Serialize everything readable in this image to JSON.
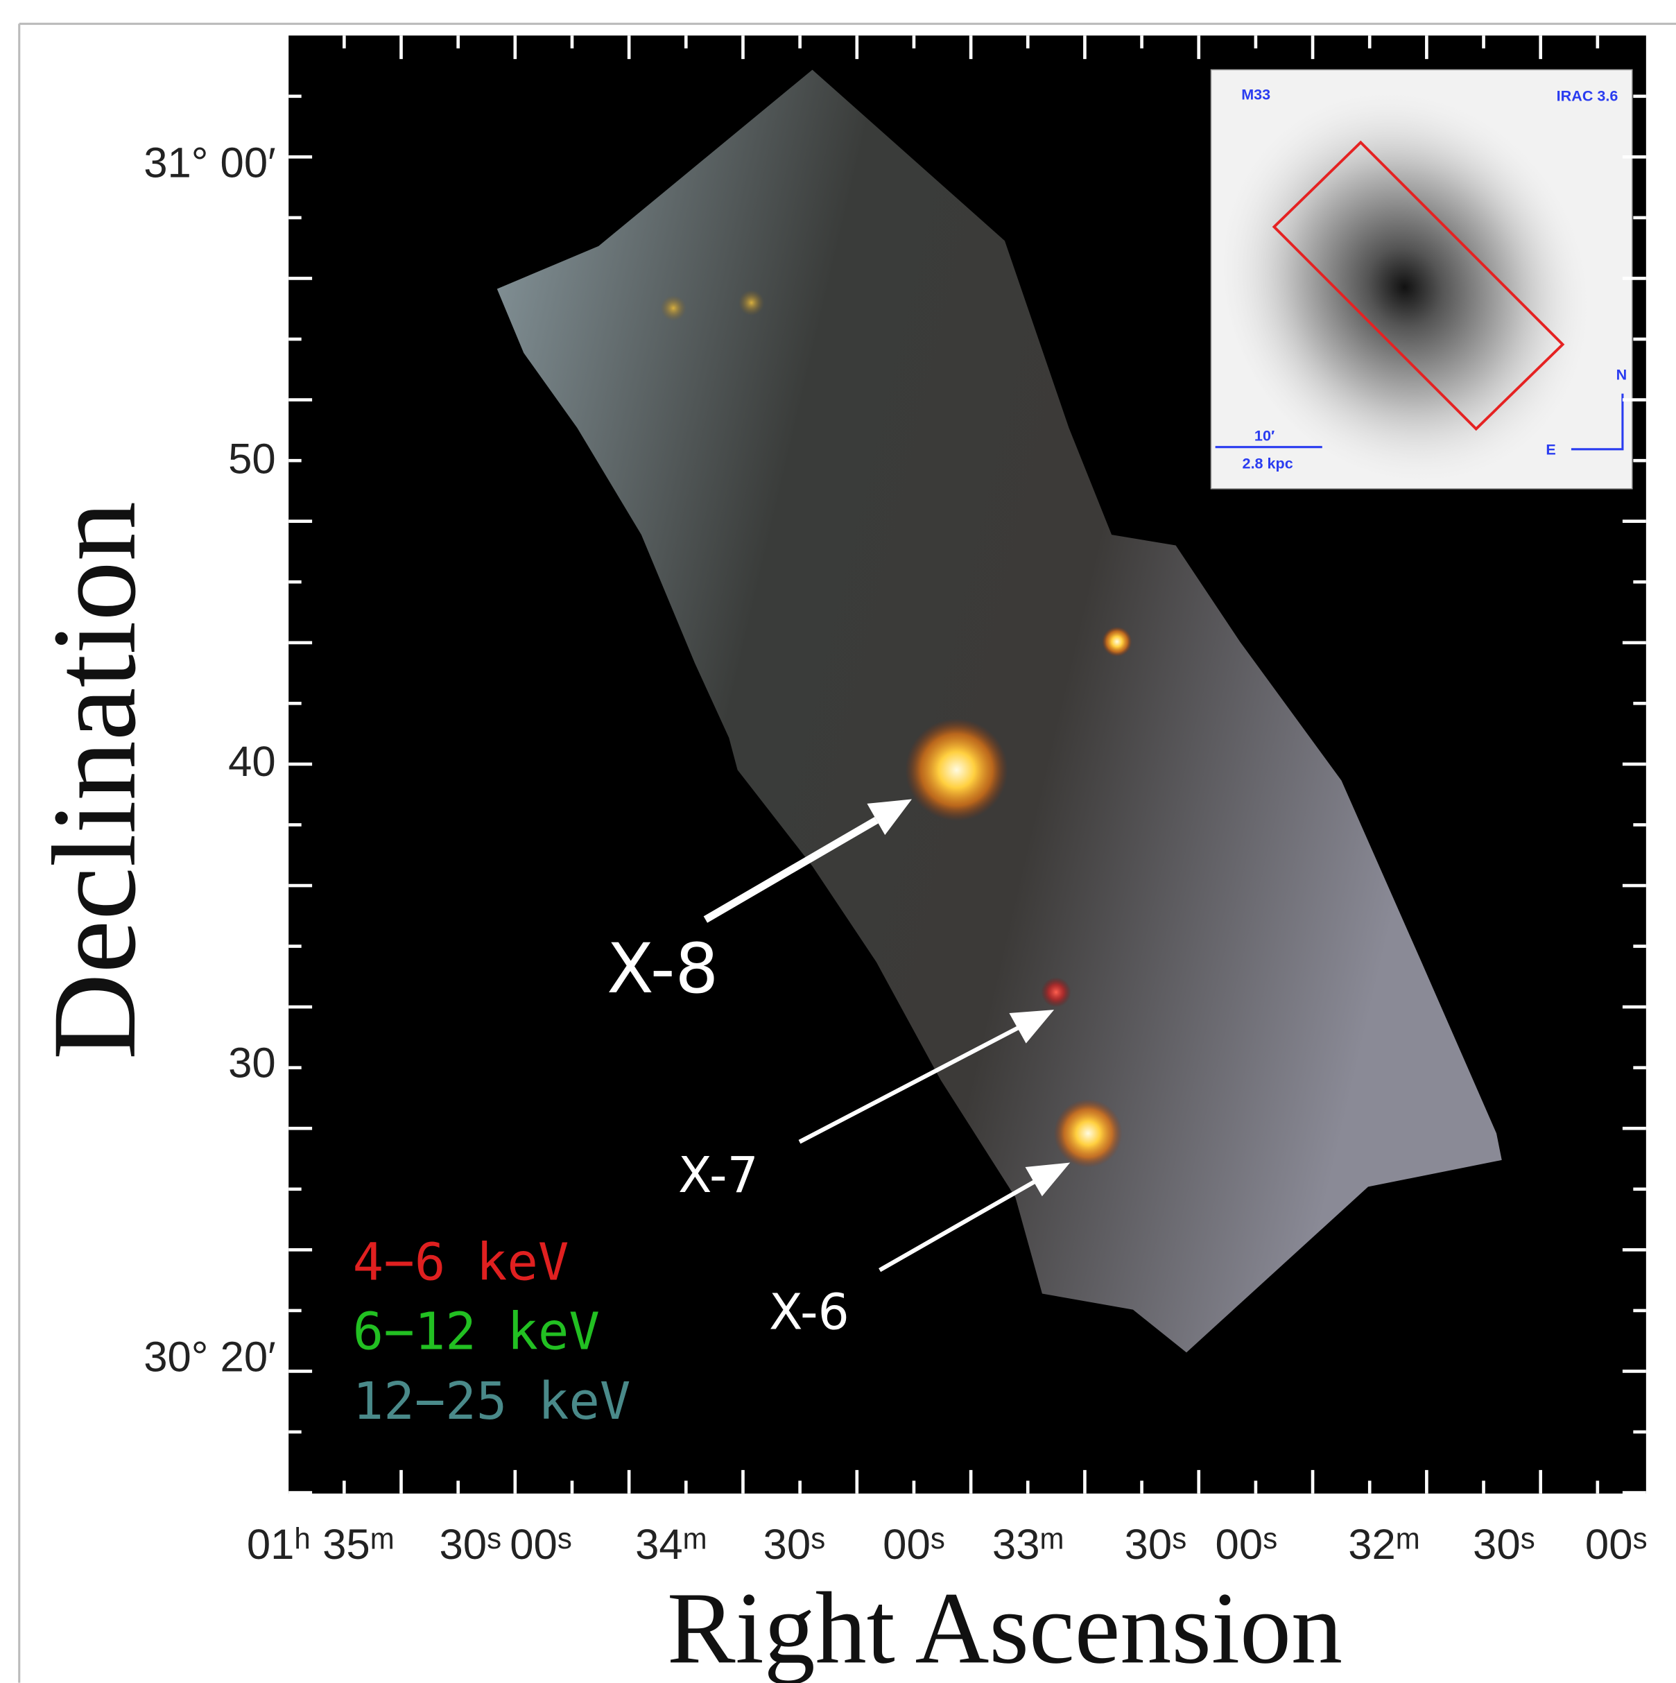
{
  "figure": {
    "y_axis": {
      "title": "Declination",
      "tick_labels": [
        "31° 00′",
        "50",
        "40",
        "30",
        "30° 20′"
      ]
    },
    "x_axis": {
      "title": "Right Ascension",
      "tick_labels": [
        "01ʰ 35ᵐ",
        "30ˢ",
        "00ˢ",
        "34ᵐ",
        "30ˢ",
        "00ˢ",
        "33ᵐ",
        "30ˢ",
        "00ˢ",
        "32ᵐ",
        "30ˢ",
        "00ˢ"
      ]
    },
    "legend": [
      "4−6 keV",
      "6−12 keV",
      "12−25 keV"
    ],
    "annotations": [
      "X-8",
      "X-7",
      "X-6"
    ],
    "inset": {
      "galaxy": "M33",
      "band": "IRAC 3.6",
      "scale_angle": "10′",
      "scale_length": "2.8 kpc",
      "north": "N",
      "east": "E"
    }
  }
}
